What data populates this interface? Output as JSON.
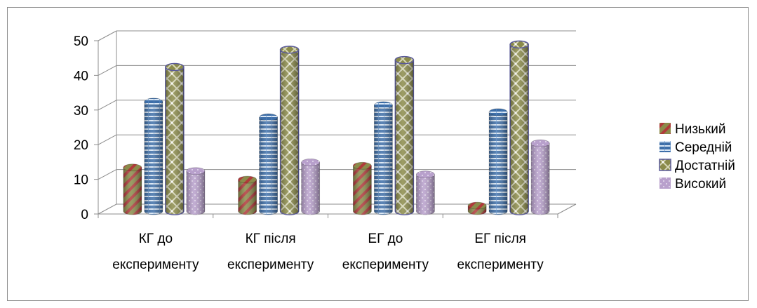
{
  "chart_data": {
    "type": "bar",
    "title": "",
    "xlabel": "",
    "ylabel": "",
    "ylim": [
      0,
      50
    ],
    "yticks": [
      "0",
      "10",
      "20",
      "30",
      "40",
      "50"
    ],
    "categories": [
      [
        "КГ до",
        "експерименту"
      ],
      [
        "КГ після",
        "експерименту"
      ],
      [
        "ЕГ до",
        "експерименту"
      ],
      [
        "ЕГ після",
        "експерименту"
      ]
    ],
    "series": [
      {
        "name": "Низький",
        "values": [
          13,
          9.5,
          13.5,
          2
        ],
        "color": "#8b8b4a",
        "accent": "#b03a3a",
        "pattern": "diagonal-stripes"
      },
      {
        "name": "Середній",
        "values": [
          32,
          27.5,
          31,
          29
        ],
        "color": "#3d6ea8",
        "accent": "#d8e6f5",
        "pattern": "horizontal-stripes"
      },
      {
        "name": "Достатній",
        "values": [
          42,
          47,
          44,
          48.5
        ],
        "color": "#8b8b4a",
        "accent": "#e6e6cc",
        "pattern": "diamond-lattice"
      },
      {
        "name": "Високий",
        "values": [
          12,
          14.5,
          11,
          20
        ],
        "color": "#b8a0cc",
        "accent": "#e8dff0",
        "pattern": "dots"
      }
    ],
    "grid": true,
    "legend_position": "right",
    "style": "3d-cylinder"
  }
}
